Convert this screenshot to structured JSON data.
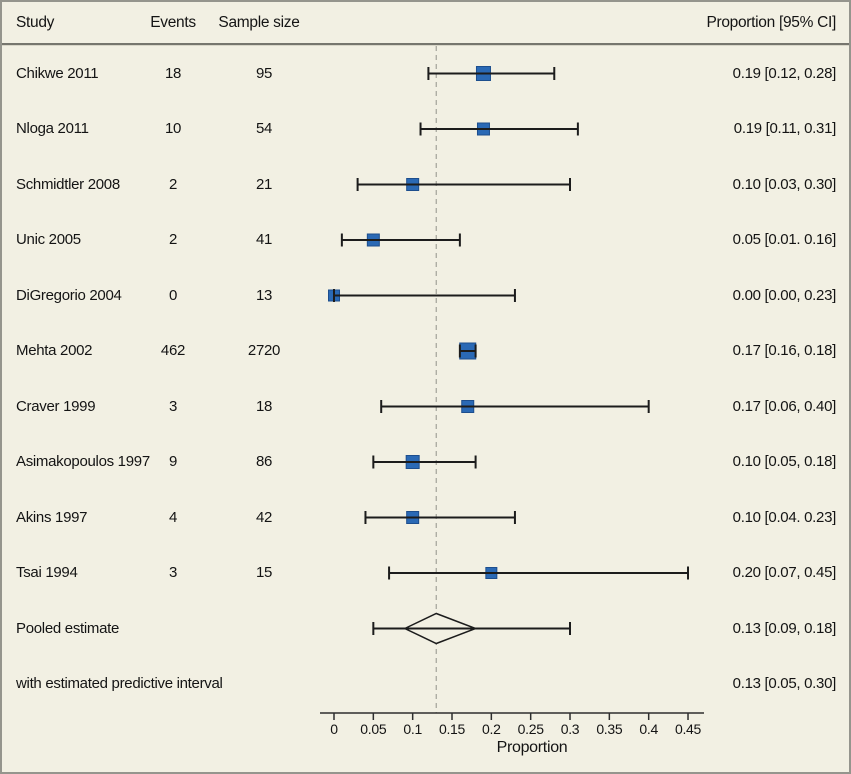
{
  "header": {
    "study": "Study",
    "events": "Events",
    "sample_size": "Sample size",
    "proportion_ci": "Proportion [95% CI]"
  },
  "chart_data": {
    "type": "forest",
    "xlabel": "Proportion",
    "xlim": [
      0,
      0.45
    ],
    "x_ticks": [
      0,
      0.05,
      0.1,
      0.15,
      0.2,
      0.25,
      0.3,
      0.35,
      0.4,
      0.45
    ],
    "x_tick_labels": [
      "0",
      "0.05",
      "0.1",
      "0.15",
      "0.2",
      "0.25",
      "0.3",
      "0.35",
      "0.4",
      "0.45"
    ],
    "reference_line": 0.13,
    "studies": [
      {
        "study": "Chikwe 2011",
        "events": "18",
        "sample_size": "95",
        "proportion": 0.19,
        "ci_low": 0.12,
        "ci_high": 0.28,
        "ci_text": "0.19 [0.12, 0.28]",
        "marker_size": 14
      },
      {
        "study": "Nloga 2011",
        "events": "10",
        "sample_size": "54",
        "proportion": 0.19,
        "ci_low": 0.11,
        "ci_high": 0.31,
        "ci_text": "0.19 [0.11, 0.31]",
        "marker_size": 12
      },
      {
        "study": "Schmidtler 2008",
        "events": "2",
        "sample_size": "21",
        "proportion": 0.1,
        "ci_low": 0.03,
        "ci_high": 0.3,
        "ci_text": "0.10 [0.03, 0.30]",
        "marker_size": 12
      },
      {
        "study": "Unic 2005",
        "events": "2",
        "sample_size": "41",
        "proportion": 0.05,
        "ci_low": 0.01,
        "ci_high": 0.16,
        "ci_text": "0.05 [0.01. 0.16]",
        "marker_size": 12
      },
      {
        "study": "DiGregorio 2004",
        "events": "0",
        "sample_size": "13",
        "proportion": 0.0,
        "ci_low": 0.0,
        "ci_high": 0.23,
        "ci_text": "0.00 [0.00, 0.23]",
        "marker_size": 11
      },
      {
        "study": "Mehta 2002",
        "events": "462",
        "sample_size": "2720",
        "proportion": 0.17,
        "ci_low": 0.16,
        "ci_high": 0.18,
        "ci_text": "0.17 [0.16, 0.18]",
        "marker_size": 16
      },
      {
        "study": "Craver 1999",
        "events": "3",
        "sample_size": "18",
        "proportion": 0.17,
        "ci_low": 0.06,
        "ci_high": 0.4,
        "ci_text": "0.17 [0.06, 0.40]",
        "marker_size": 12
      },
      {
        "study": "Asimakopoulos 1997",
        "events": "9",
        "sample_size": "86",
        "proportion": 0.1,
        "ci_low": 0.05,
        "ci_high": 0.18,
        "ci_text": "0.10 [0.05, 0.18]",
        "marker_size": 13
      },
      {
        "study": "Akins 1997",
        "events": "4",
        "sample_size": "42",
        "proportion": 0.1,
        "ci_low": 0.04,
        "ci_high": 0.23,
        "ci_text": "0.10 [0.04. 0.23]",
        "marker_size": 12
      },
      {
        "study": "Tsai 1994",
        "events": "3",
        "sample_size": "15",
        "proportion": 0.2,
        "ci_low": 0.07,
        "ci_high": 0.45,
        "ci_text": "0.20 [0.07, 0.45]",
        "marker_size": 11
      }
    ],
    "pooled": {
      "label": "Pooled estimate",
      "proportion": 0.13,
      "ci_low": 0.09,
      "ci_high": 0.18,
      "ci_text": "0.13 [0.09, 0.18]"
    },
    "predictive": {
      "label": "with estimated predictive interval",
      "interval_low": 0.05,
      "interval_high": 0.3,
      "ci_text": "0.13 [0.05, 0.30]"
    }
  },
  "colors": {
    "background": "#f2f0e3",
    "marker_fill": "#2a69b5",
    "marker_stroke": "#1d4e8d",
    "line": "#1c1c1c",
    "axis": "#2e2e2e",
    "reference_line": "#a8a89f",
    "text": "#141414"
  }
}
